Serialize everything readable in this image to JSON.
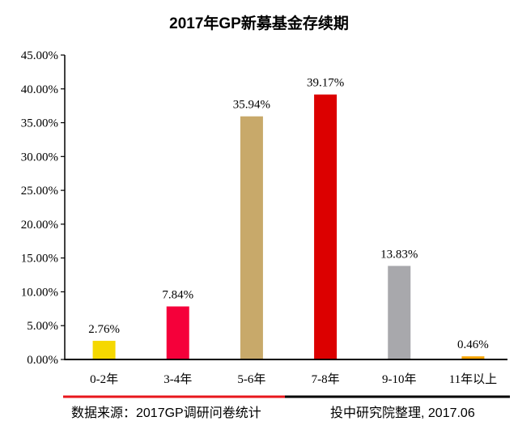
{
  "chart_data": {
    "type": "bar",
    "title": "2017年GP新募基金存续期",
    "categories": [
      "0-2年",
      "3-4年",
      "5-6年",
      "7-8年",
      "9-10年",
      "11年以上"
    ],
    "values": [
      2.76,
      7.84,
      35.94,
      39.17,
      13.83,
      0.46
    ],
    "data_labels": [
      "2.76%",
      "7.84%",
      "35.94%",
      "39.17%",
      "13.83%",
      "0.46%"
    ],
    "colors": [
      "#F5D800",
      "#F5003A",
      "#C8A96A",
      "#DC0000",
      "#A8A8AC",
      "#F5A200"
    ],
    "ylim": [
      0,
      45
    ],
    "yticks": [
      "0.00%",
      "5.00%",
      "10.00%",
      "15.00%",
      "20.00%",
      "25.00%",
      "30.00%",
      "35.00%",
      "40.00%",
      "45.00%"
    ],
    "xlabel": "",
    "ylabel": "",
    "grid": false,
    "legend": "none"
  },
  "footer": {
    "source": "数据来源：2017GP调研问卷统计",
    "credit": "投中研究院整理, 2017.06",
    "accent": "#E8161C"
  }
}
